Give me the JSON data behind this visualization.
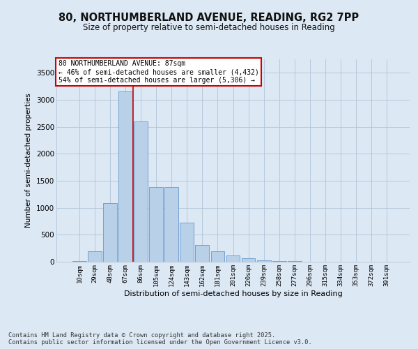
{
  "title_line1": "80, NORTHUMBERLAND AVENUE, READING, RG2 7PP",
  "title_line2": "Size of property relative to semi-detached houses in Reading",
  "xlabel": "Distribution of semi-detached houses by size in Reading",
  "ylabel": "Number of semi-detached properties",
  "categories": [
    "10sqm",
    "29sqm",
    "48sqm",
    "67sqm",
    "86sqm",
    "105sqm",
    "124sqm",
    "143sqm",
    "162sqm",
    "181sqm",
    "201sqm",
    "220sqm",
    "239sqm",
    "258sqm",
    "277sqm",
    "296sqm",
    "315sqm",
    "334sqm",
    "353sqm",
    "372sqm",
    "391sqm"
  ],
  "values": [
    15,
    195,
    1090,
    3150,
    2600,
    1390,
    1390,
    720,
    310,
    195,
    110,
    65,
    30,
    15,
    8,
    5,
    3,
    2,
    1,
    1,
    1
  ],
  "bar_color": "#b8d0e8",
  "bar_edge_color": "#6699cc",
  "vline_x_index": 4,
  "vline_color": "#cc0000",
  "annotation_text_line1": "80 NORTHUMBERLAND AVENUE: 87sqm",
  "annotation_text_line2": "← 46% of semi-detached houses are smaller (4,432)",
  "annotation_text_line3": "54% of semi-detached houses are larger (5,306) →",
  "ylim": [
    0,
    3750
  ],
  "yticks": [
    0,
    500,
    1000,
    1500,
    2000,
    2500,
    3000,
    3500
  ],
  "bg_color": "#dce8f4",
  "plot_bg_color": "#dce8f4",
  "footer_line1": "Contains HM Land Registry data © Crown copyright and database right 2025.",
  "footer_line2": "Contains public sector information licensed under the Open Government Licence v3.0.",
  "annotation_box_color": "#ffffff",
  "annotation_box_edge": "#cc0000"
}
